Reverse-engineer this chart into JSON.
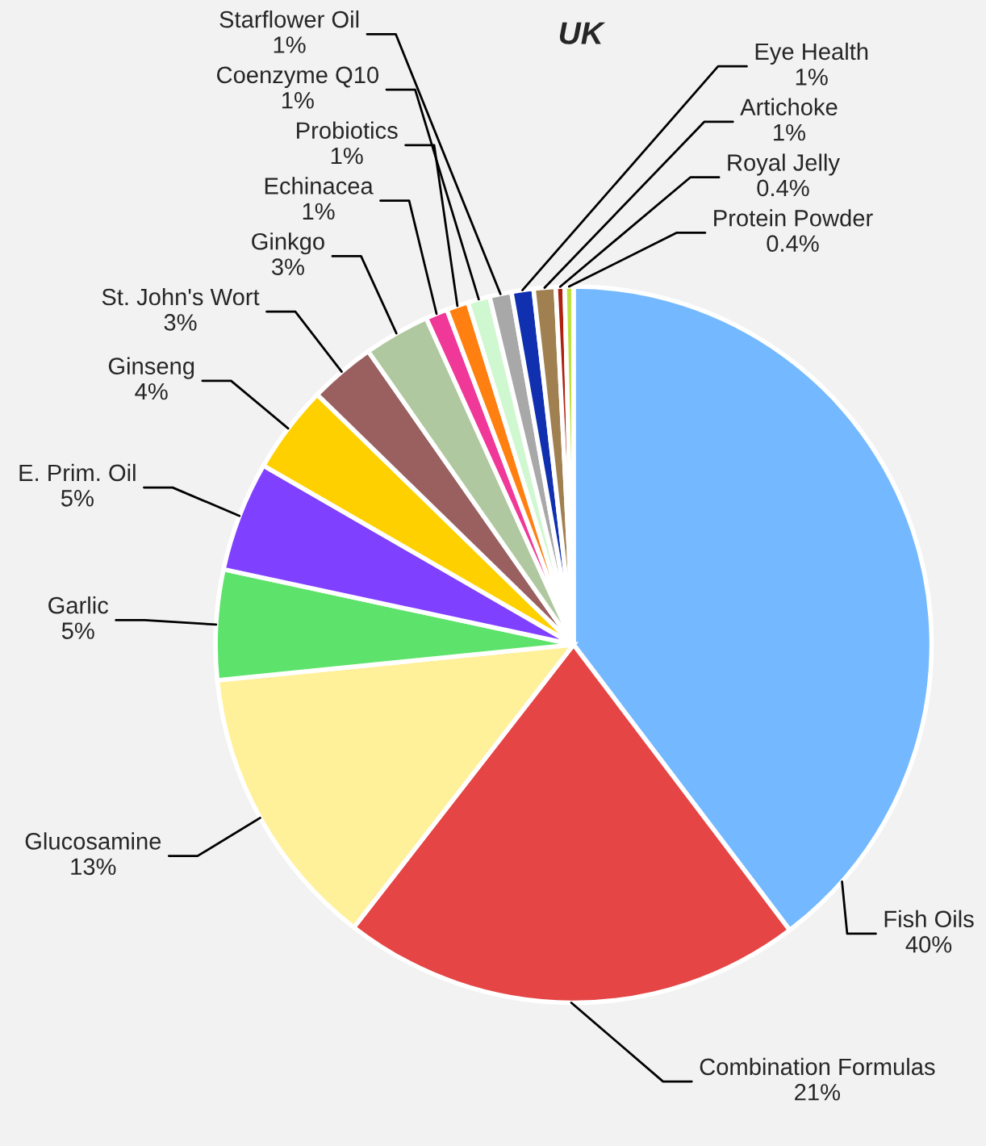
{
  "chart_data": {
    "type": "pie",
    "title": "UK",
    "categories": [
      "Fish Oils",
      "Combination Formulas",
      "Glucosamine",
      "Garlic",
      "E. Prim. Oil",
      "Ginseng",
      "St. John's Wort",
      "Ginkgo",
      "Echinacea",
      "Probiotics",
      "Coenzyme Q10",
      "Starflower Oil",
      "Eye Health",
      "Artichoke",
      "Royal Jelly",
      "Protein Powder"
    ],
    "values": [
      40,
      21,
      13,
      5,
      5,
      4,
      3,
      3,
      1,
      1,
      1,
      1,
      1,
      1,
      0.4,
      0.4
    ],
    "value_labels": [
      "40%",
      "21%",
      "13%",
      "5%",
      "5%",
      "4%",
      "3%",
      "3%",
      "1%",
      "1%",
      "1%",
      "1%",
      "1%",
      "1%",
      "0.4%",
      "0.4%"
    ],
    "colors": [
      "#74b9ff",
      "#e54545",
      "#fff09a",
      "#5de36b",
      "#8040ff",
      "#ffd000",
      "#9a6060",
      "#b0c8a0",
      "#f03898",
      "#ff8010",
      "#d0f8d0",
      "#a8a8a8",
      "#1030b0",
      "#a08050",
      "#b02010",
      "#c0e040"
    ],
    "legend": false
  }
}
